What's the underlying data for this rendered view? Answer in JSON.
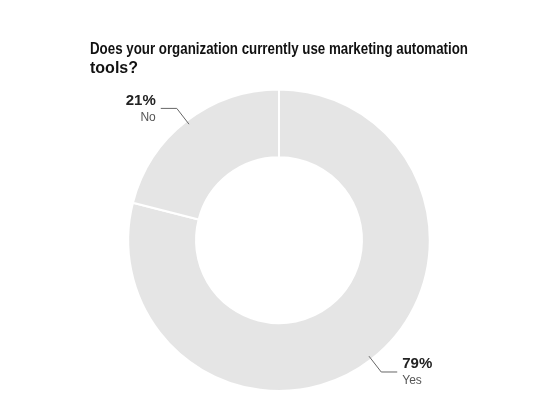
{
  "chart_data": {
    "type": "doughnut",
    "title": "Does your organization currently use marketing automation\ntools?",
    "categories": [
      "Yes",
      "No"
    ],
    "values": [
      79,
      21
    ],
    "value_labels": [
      "79%",
      "21%"
    ],
    "data_labels": true,
    "legend": false
  }
}
